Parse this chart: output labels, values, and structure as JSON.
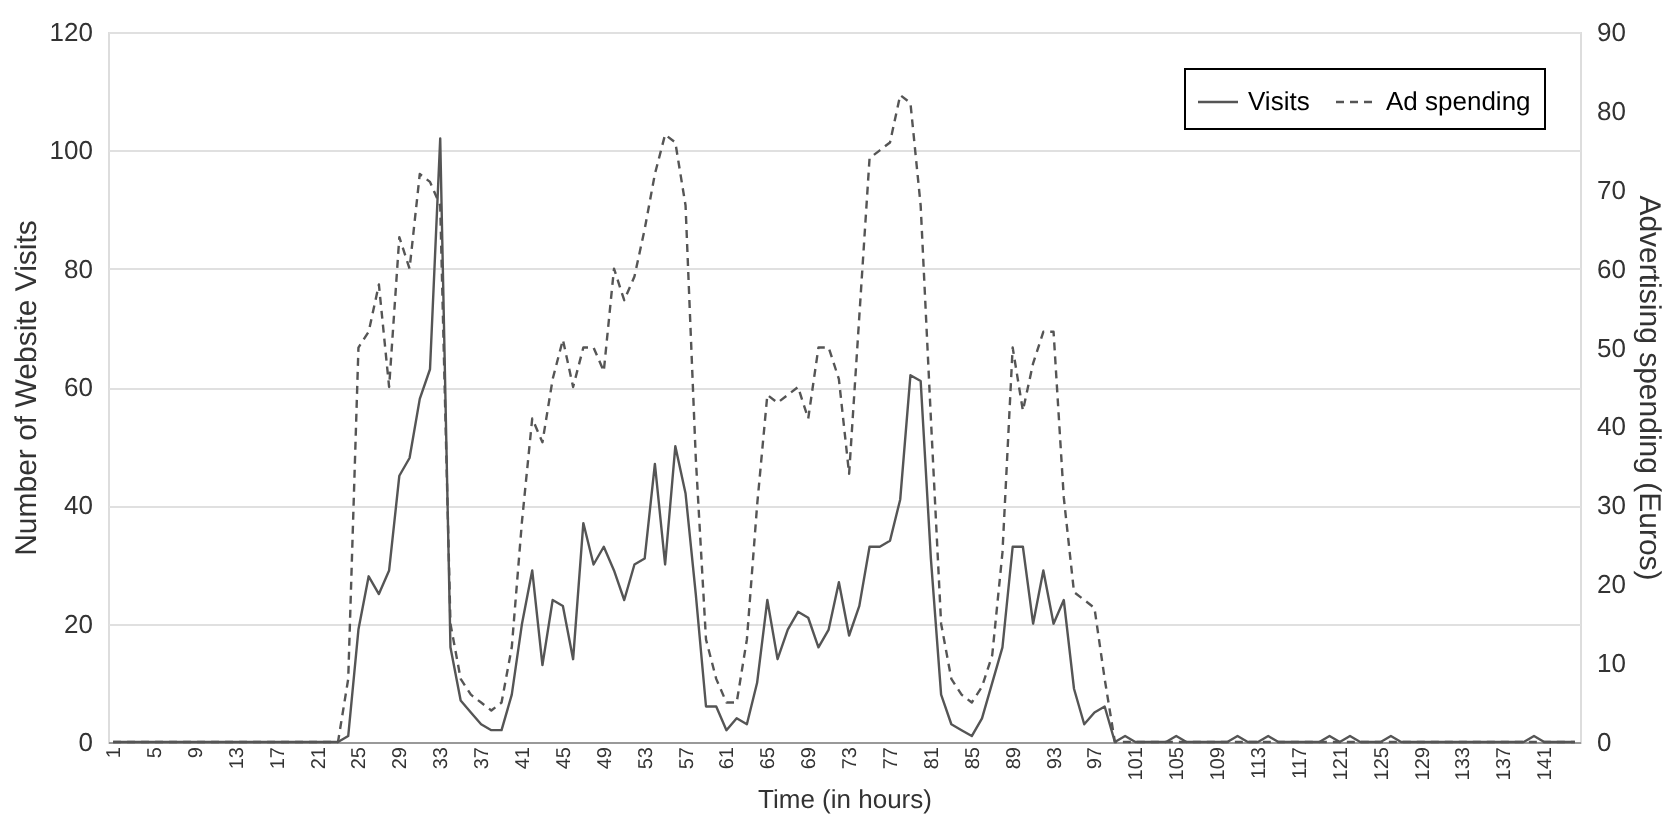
{
  "chart_data": {
    "type": "line",
    "xlabel": "Time (in hours)",
    "ylabel": "Number of Website Visits",
    "y2label": "Advertising spending (Euros)",
    "categories": [
      "1",
      null,
      null,
      null,
      "5",
      null,
      null,
      null,
      "9",
      null,
      null,
      null,
      "13",
      null,
      null,
      null,
      "17",
      null,
      null,
      null,
      "21",
      null,
      null,
      null,
      "25",
      null,
      null,
      null,
      "29",
      null,
      null,
      null,
      "33",
      null,
      null,
      null,
      "37",
      null,
      null,
      null,
      "41",
      null,
      null,
      null,
      "45",
      null,
      null,
      null,
      "49",
      null,
      null,
      null,
      "53",
      null,
      null,
      null,
      "57",
      null,
      null,
      null,
      "61",
      null,
      null,
      null,
      "65",
      null,
      null,
      null,
      "69",
      null,
      null,
      null,
      "73",
      null,
      null,
      null,
      "77",
      null,
      null,
      null,
      "81",
      null,
      null,
      null,
      "85",
      null,
      null,
      null,
      "89",
      null,
      null,
      null,
      "93",
      null,
      null,
      null,
      "97",
      null,
      null,
      null,
      "101",
      null,
      null,
      null,
      "105",
      null,
      null,
      null,
      "109",
      null,
      null,
      null,
      "113",
      null,
      null,
      null,
      "117",
      null,
      null,
      null,
      "121",
      null,
      null,
      null,
      "125",
      null,
      null,
      null,
      "129",
      null,
      null,
      null,
      "133",
      null,
      null,
      null,
      "137",
      null,
      null,
      null,
      "141",
      null,
      null,
      null
    ],
    "series": [
      {
        "name": "Visits",
        "color": "#555555",
        "line_style": "solid",
        "values": [
          0,
          0,
          0,
          0,
          0,
          0,
          0,
          0,
          0,
          0,
          0,
          0,
          0,
          0,
          0,
          0,
          0,
          0,
          0,
          0,
          0,
          0,
          0,
          1,
          19,
          28,
          25,
          29,
          45,
          48,
          58,
          63,
          102,
          16,
          7,
          5,
          3,
          2,
          2,
          8,
          20,
          29,
          13,
          24,
          23,
          14,
          37,
          30,
          33,
          29,
          24,
          30,
          31,
          47,
          30,
          50,
          42,
          25,
          6,
          6,
          2,
          4,
          3,
          10,
          24,
          14,
          19,
          22,
          21,
          16,
          19,
          27,
          18,
          23,
          33,
          33,
          34,
          41,
          62,
          61,
          31,
          8,
          3,
          2,
          1,
          4,
          10,
          16,
          33,
          33,
          20,
          29,
          20,
          24,
          9,
          3,
          5,
          6,
          0,
          1,
          0,
          0,
          0,
          0,
          1,
          0,
          0,
          0,
          0,
          0,
          1,
          0,
          0,
          1,
          0,
          0,
          0,
          0,
          0,
          1,
          0,
          1,
          0,
          0,
          0,
          1,
          0,
          0,
          0,
          0,
          0,
          0,
          0,
          0,
          0,
          0,
          0,
          0,
          0,
          1,
          0,
          0,
          0,
          0
        ]
      },
      {
        "name": "Ad spending",
        "color": "#555555",
        "line_style": "dashed",
        "axis": "y2",
        "values": [
          0,
          0,
          0,
          0,
          0,
          0,
          0,
          0,
          0,
          0,
          0,
          0,
          0,
          0,
          0,
          0,
          0,
          0,
          0,
          0,
          0,
          0,
          0,
          8,
          50,
          52,
          58,
          45,
          64,
          60,
          72,
          71,
          68,
          15,
          8,
          6,
          5,
          4,
          5,
          12,
          28,
          41,
          38,
          46,
          51,
          45,
          50,
          50,
          47,
          60,
          56,
          59,
          65,
          72,
          77,
          76,
          68,
          36,
          13,
          8,
          5,
          5,
          13,
          30,
          44,
          43,
          44,
          45,
          41,
          50,
          50,
          46,
          34,
          54,
          74,
          75,
          76,
          82,
          81,
          68,
          41,
          15,
          8,
          6,
          5,
          7,
          11,
          24,
          50,
          42,
          48,
          52,
          52,
          31,
          19,
          18,
          17,
          8,
          0,
          0,
          0,
          0,
          0,
          0,
          0,
          0,
          0,
          0,
          0,
          0,
          0,
          0,
          0,
          0,
          0,
          0,
          0,
          0,
          0,
          0,
          0,
          0,
          0,
          0,
          0,
          0,
          0,
          0,
          0,
          0,
          0,
          0,
          0,
          0,
          0,
          0,
          0,
          0,
          0,
          0,
          0,
          0,
          0,
          0
        ]
      }
    ],
    "ylim": [
      0,
      120
    ],
    "yticks": [
      0,
      20,
      40,
      60,
      80,
      100,
      120
    ],
    "y2lim": [
      0,
      90
    ],
    "y2ticks": [
      0,
      10,
      20,
      30,
      40,
      50,
      60,
      70,
      80,
      90
    ],
    "grid": "y",
    "legend": "top right",
    "marker": "none"
  }
}
